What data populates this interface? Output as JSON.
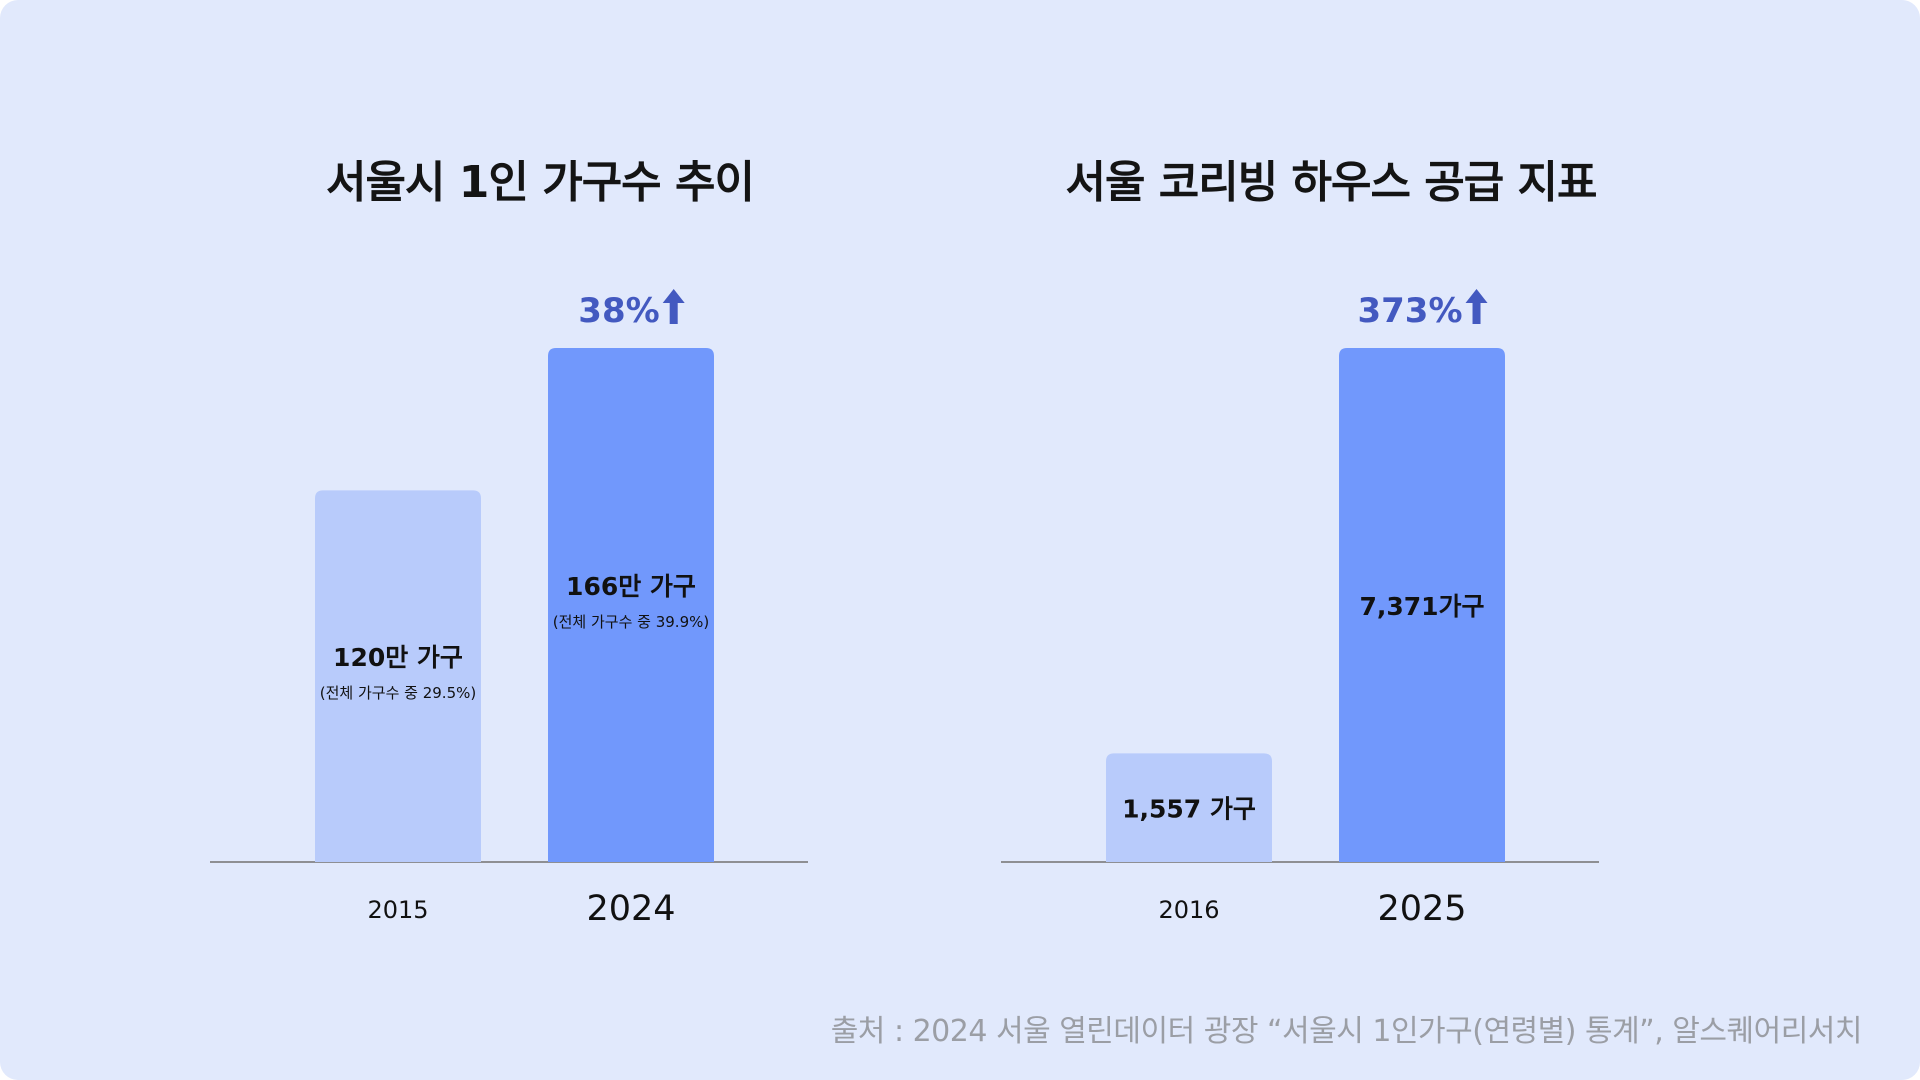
{
  "colors": {
    "background": "#e1e9fc",
    "bar_light": "#b8cbfb",
    "bar_dark": "#7198fc",
    "accent": "#4359c0",
    "axis": "#8e8f93",
    "source_text": "#9b9ea5"
  },
  "chart_data": [
    {
      "type": "bar",
      "title": "서울시 1인 가구수 추이",
      "categories": [
        "2015",
        "2024"
      ],
      "values": [
        120,
        166
      ],
      "unit": "만 가구",
      "bar_labels": [
        "120만 가구",
        "166만 가구"
      ],
      "bar_sublabels": [
        "(전체 가구수 중 29.5%)",
        "(전체 가구수 중 39.9%)"
      ],
      "growth": "38%",
      "ylim": [
        0,
        166
      ],
      "xlabel": "",
      "ylabel": ""
    },
    {
      "type": "bar",
      "title": "서울 코리빙 하우스 공급 지표",
      "categories": [
        "2016",
        "2025"
      ],
      "values": [
        1557,
        7371
      ],
      "unit": "가구",
      "bar_labels": [
        "1,557 가구",
        "7,371가구"
      ],
      "bar_sublabels": [
        "",
        ""
      ],
      "growth": "373%",
      "ylim": [
        0,
        7371
      ],
      "xlabel": "",
      "ylabel": ""
    }
  ],
  "source": "출처 : 2024 서울 열린데이터 광장 “서울시 1인가구(연령별) 통계”, 알스퀘어리서치"
}
